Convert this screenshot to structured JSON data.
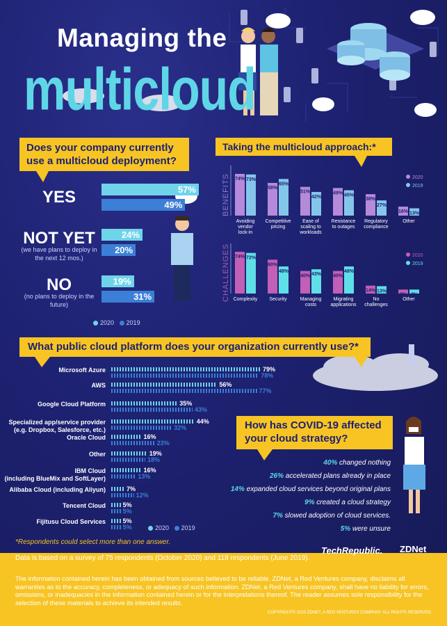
{
  "header": {
    "title_line1": "Managing the",
    "title_line2": "multicloud"
  },
  "colors": {
    "background": "#1d2170",
    "accent_yellow": "#f7c424",
    "series_2020": "#6fd4ea",
    "series_2019": "#3c7fd6",
    "benefits_2020": "#b58ad9",
    "benefits_2019": "#84c6ea",
    "challenges_2020": "#c25fb6",
    "challenges_2019": "#5fe0e6"
  },
  "q1": {
    "title": "Does your company currently use a multicloud deployment?",
    "answers": [
      {
        "label": "YES",
        "sub": "",
        "v2020_label": "57%",
        "v2019_label": "49%"
      },
      {
        "label": "NOT YET",
        "sub": "(we have plans to deploy in the next 12 mos.)",
        "v2020_label": "24%",
        "v2019_label": "20%"
      },
      {
        "label": "NO",
        "sub": "(no plans to deploy in the future)",
        "v2020_label": "19%",
        "v2019_label": "31%"
      }
    ],
    "legend_2020": "2020",
    "legend_2019": "2019"
  },
  "q2": {
    "title": "Taking the multicloud approach:*",
    "benefits_label": "BENEFITS",
    "challenges_label": "CHALLENGES",
    "legend_2020": "2020",
    "legend_2019": "2019",
    "benefit_labels": [
      [
        "Avoiding",
        "vendor",
        "lock-in"
      ],
      [
        "Competitive",
        "pricing"
      ],
      [
        "Ease of",
        "scaling to",
        "workloads"
      ],
      [
        "Resistance",
        "to outages"
      ],
      [
        "Regulatory",
        "compliance"
      ],
      [
        "Other"
      ]
    ],
    "challenge_labels": [
      [
        "Complexity"
      ],
      [
        "Security"
      ],
      [
        "Managing",
        "costs"
      ],
      [
        "Migrating",
        "applications"
      ],
      [
        "No",
        "challenges"
      ],
      [
        "Other"
      ]
    ]
  },
  "q3": {
    "title": "What public cloud platform does your organization currently use?*",
    "platforms": [
      [
        "Microsoft Azure"
      ],
      [
        "AWS"
      ],
      [
        "Google Cloud Platform"
      ],
      [
        "Specialized app/service provider",
        "(e.g. Dropbox, Salesforce, etc.)"
      ],
      [
        "Oracle Cloud"
      ],
      [
        "Other"
      ],
      [
        "IBM Cloud",
        "(including BlueMix and SoftLayer)"
      ],
      [
        "Alibaba Cloud (including Aliyun)"
      ],
      [
        "Tencent Cloud"
      ],
      [
        "Fijitusu Cloud Services"
      ]
    ],
    "legend_2020": "2020",
    "legend_2019": "2019"
  },
  "q4": {
    "title": "How has COVID-19 affected your cloud strategy?",
    "items": [
      {
        "pct": "40%",
        "text": " changed nothing"
      },
      {
        "pct": "26%",
        "text": " accelerated plans already in place"
      },
      {
        "pct": "14%",
        "text": " expanded cloud services beyond original plans"
      },
      {
        "pct": "9%",
        "text": " created a cloud strategy"
      },
      {
        "pct": "7%",
        "text": " slowed adoption of cloud services."
      },
      {
        "pct": "5%",
        "text": " were unsure"
      }
    ]
  },
  "footnote": "*Respondents could select more than one answer.",
  "footer": {
    "survey": "Data is based on a survey of 75 respondents (October 2020) and 118 respondents (June 2019).",
    "disclaimer": "The information contained herein has been obtained from sources believed to be reliable. ZDNet, a Red Ventures company, disclaims all warranties as to the accuracy, completeness, or adequacy of such information. ZDNet, a Red Ventures company, shall have no liability for errors, omissions, or inadequacies in the information contained herein or for the interpretations thereof. The reader assumes sole responsibility for the selection of these materials to achieve its intended results.",
    "copyright": "COPYRIGHT© 2020 ZDNET, A RED VENTURES COMPANY. ALL RIGHTS RESERVED.",
    "logo_techrepublic": "TechRepublic.",
    "logo_zdnet": "ZDNet"
  },
  "chart_data": [
    {
      "type": "bar",
      "title": "Does your company currently use a multicloud deployment?",
      "categories": [
        "YES",
        "NOT YET",
        "NO"
      ],
      "series": [
        {
          "name": "2020",
          "values": [
            57,
            24,
            19
          ]
        },
        {
          "name": "2019",
          "values": [
            49,
            20,
            31
          ]
        }
      ]
    },
    {
      "type": "bar",
      "title": "Taking the multicloud approach:*",
      "ylabel": "BENEFITS",
      "categories": [
        "Avoiding vendor lock-in",
        "Competitive pricing",
        "Ease of scaling to workloads",
        "Resistance to outages",
        "Regulatory compliance",
        "Other"
      ],
      "series": [
        {
          "name": "2020",
          "values": [
            74,
            58,
            51,
            49,
            38,
            16
          ]
        },
        {
          "name": "2019",
          "values": [
            73,
            65,
            42,
            45,
            27,
            13
          ]
        }
      ]
    },
    {
      "type": "bar",
      "ylabel": "CHALLENGES",
      "categories": [
        "Complexity",
        "Security",
        "Managing costs",
        "Migrating applications",
        "No challenges",
        "Other"
      ],
      "series": [
        {
          "name": "2020",
          "values": [
            74,
            60,
            40,
            40,
            14,
            7
          ]
        },
        {
          "name": "2019",
          "values": [
            72,
            48,
            43,
            48,
            13,
            7
          ]
        }
      ]
    },
    {
      "type": "bar",
      "title": "What public cloud platform does your organization currently use?*",
      "categories": [
        "Microsoft Azure",
        "AWS",
        "Google Cloud Platform",
        "Specialized app/service provider (e.g. Dropbox, Salesforce, etc.)",
        "Oracle Cloud",
        "Other",
        "IBM Cloud (including BlueMix and SoftLayer)",
        "Alibaba Cloud (including Aliyun)",
        "Tencent Cloud",
        "Fijitusu Cloud Services"
      ],
      "series": [
        {
          "name": "2020",
          "values": [
            79,
            56,
            35,
            44,
            16,
            19,
            16,
            7,
            5,
            5
          ]
        },
        {
          "name": "2019",
          "values": [
            78,
            77,
            43,
            32,
            23,
            18,
            13,
            12,
            5,
            5
          ]
        }
      ]
    }
  ]
}
